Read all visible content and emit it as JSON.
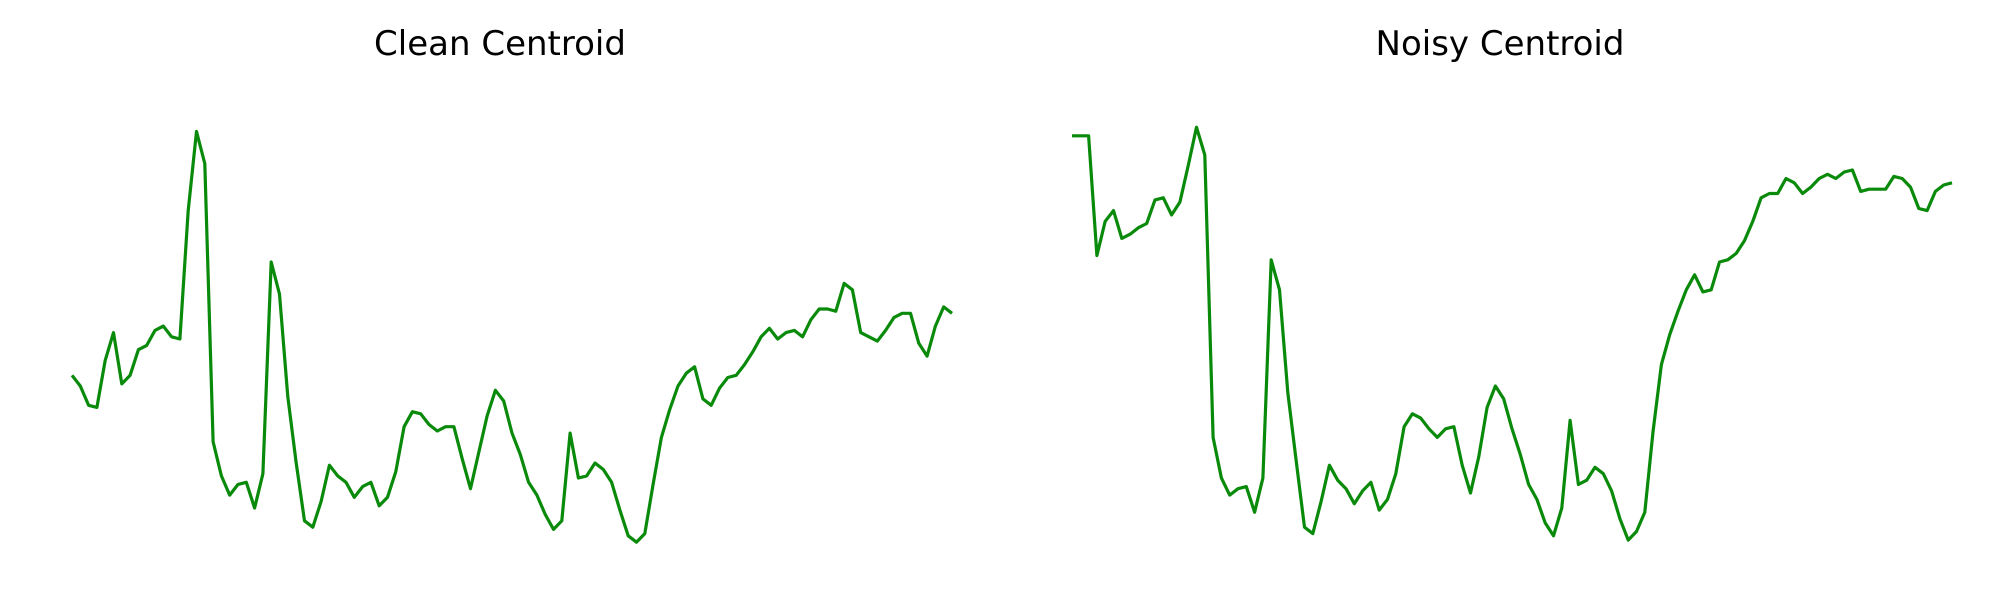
{
  "line_color": "#0a8a0a",
  "chart_data": [
    {
      "type": "line",
      "title": "Clean Centroid",
      "axes_visible": false,
      "grid": false,
      "ylim": [
        -1.15,
        1.15
      ],
      "series": [
        {
          "values": [
            -0.24,
            -0.29,
            -0.38,
            -0.39,
            -0.17,
            -0.04,
            -0.28,
            -0.24,
            -0.12,
            -0.1,
            -0.03,
            -0.01,
            -0.06,
            -0.07,
            0.53,
            0.9,
            0.75,
            -0.55,
            -0.71,
            -0.8,
            -0.75,
            -0.74,
            -0.86,
            -0.7,
            0.29,
            0.14,
            -0.34,
            -0.65,
            -0.92,
            -0.95,
            -0.83,
            -0.66,
            -0.71,
            -0.74,
            -0.81,
            -0.76,
            -0.74,
            -0.85,
            -0.81,
            -0.69,
            -0.48,
            -0.41,
            -0.42,
            -0.47,
            -0.5,
            -0.48,
            -0.48,
            -0.63,
            -0.77,
            -0.6,
            -0.43,
            -0.31,
            -0.36,
            -0.51,
            -0.61,
            -0.74,
            -0.8,
            -0.89,
            -0.96,
            -0.92,
            -0.51,
            -0.72,
            -0.71,
            -0.65,
            -0.68,
            -0.74,
            -0.87,
            -0.99,
            -1.02,
            -0.98,
            -0.75,
            -0.53,
            -0.4,
            -0.29,
            -0.23,
            -0.2,
            -0.35,
            -0.38,
            -0.3,
            -0.25,
            -0.24,
            -0.19,
            -0.13,
            -0.06,
            -0.02,
            -0.07,
            -0.04,
            -0.03,
            -0.06,
            0.02,
            0.07,
            0.07,
            0.06,
            0.19,
            0.16,
            -0.04,
            -0.06,
            -0.08,
            -0.03,
            0.03,
            0.05,
            0.05,
            -0.09,
            -0.15,
            -0.01,
            0.08,
            0.05
          ]
        }
      ]
    },
    {
      "type": "line",
      "title": "Noisy Centroid",
      "axes_visible": false,
      "grid": false,
      "ylim": [
        -1.15,
        1.15
      ],
      "series": [
        {
          "values": [
            0.88,
            0.88,
            0.88,
            0.32,
            0.48,
            0.53,
            0.4,
            0.42,
            0.45,
            0.47,
            0.58,
            0.59,
            0.51,
            0.57,
            0.74,
            0.92,
            0.79,
            -0.53,
            -0.72,
            -0.8,
            -0.77,
            -0.76,
            -0.88,
            -0.72,
            0.3,
            0.16,
            -0.32,
            -0.64,
            -0.95,
            -0.98,
            -0.83,
            -0.66,
            -0.73,
            -0.77,
            -0.84,
            -0.78,
            -0.74,
            -0.87,
            -0.82,
            -0.7,
            -0.48,
            -0.42,
            -0.44,
            -0.49,
            -0.53,
            -0.49,
            -0.48,
            -0.66,
            -0.79,
            -0.62,
            -0.39,
            -0.29,
            -0.35,
            -0.49,
            -0.61,
            -0.75,
            -0.82,
            -0.93,
            -0.99,
            -0.86,
            -0.45,
            -0.75,
            -0.73,
            -0.67,
            -0.7,
            -0.78,
            -0.91,
            -1.01,
            -0.97,
            -0.88,
            -0.5,
            -0.19,
            -0.05,
            0.06,
            0.16,
            0.23,
            0.15,
            0.16,
            0.29,
            0.3,
            0.33,
            0.39,
            0.48,
            0.59,
            0.61,
            0.61,
            0.68,
            0.66,
            0.61,
            0.64,
            0.68,
            0.7,
            0.68,
            0.71,
            0.72,
            0.62,
            0.63,
            0.63,
            0.63,
            0.69,
            0.68,
            0.64,
            0.54,
            0.53,
            0.62,
            0.65,
            0.66
          ]
        }
      ]
    }
  ]
}
